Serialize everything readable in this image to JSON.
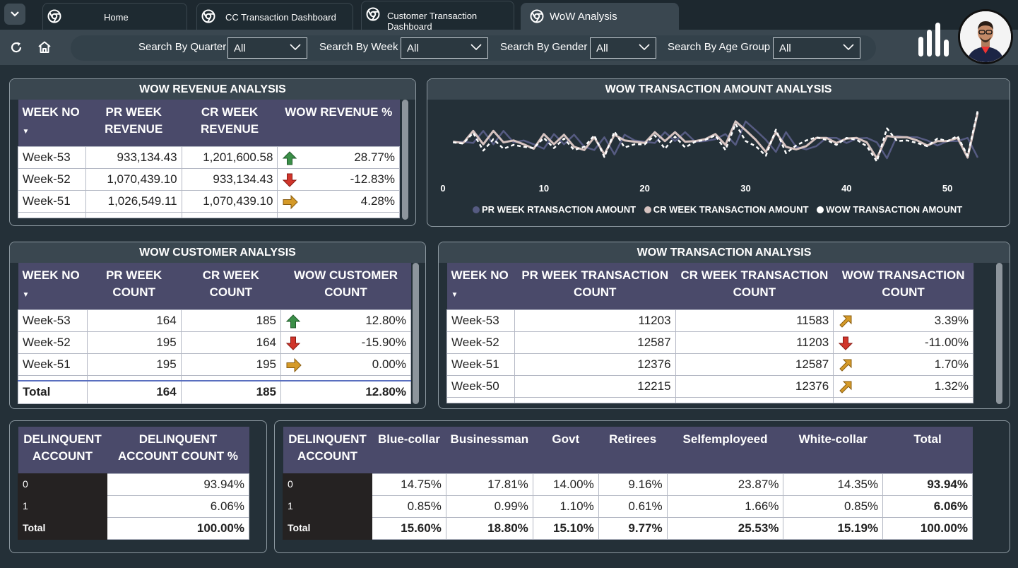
{
  "tabs": [
    {
      "label": "Home"
    },
    {
      "label": "CC Transaction Dashboard"
    },
    {
      "label": "Customer Transaction Dashboard"
    },
    {
      "label": "WoW Analysis"
    }
  ],
  "filters": [
    {
      "label": "Search By Quarter",
      "value": "All"
    },
    {
      "label": "Search By Week",
      "value": "All"
    },
    {
      "label": "Search By Gender",
      "value": "All"
    },
    {
      "label": "Search By Age Group",
      "value": "All"
    }
  ],
  "revenue": {
    "title": "WOW REVENUE ANALYSIS",
    "headers": [
      "WEEK NO",
      "PR WEEK REVENUE",
      "CR WEEK REVENUE",
      "WOW REVENUE %"
    ],
    "rows": [
      {
        "week": "Week-53",
        "pr": "933,134.43",
        "cr": "1,201,600.58",
        "trend": "up",
        "pct": "28.77%"
      },
      {
        "week": "Week-52",
        "pr": "1,070,439.10",
        "cr": "933,134.43",
        "trend": "down",
        "pct": "-12.83%"
      },
      {
        "week": "Week-51",
        "pr": "1,026,549.11",
        "cr": "1,070,439.10",
        "trend": "flat",
        "pct": "4.28%"
      }
    ]
  },
  "amount_chart": {
    "title": "WOW TRANSACTION AMOUNT ANALYSIS",
    "legend": [
      "PR WEEK RTANSACTION AMOUNT",
      "CR WEEK TRANSACTION AMOUNT",
      "WOW TRANSACTION AMOUNT"
    ],
    "colors": {
      "pr": "#565b82",
      "cr": "#d6c3c0",
      "wow": "#ffffff"
    }
  },
  "chart_data": {
    "type": "line",
    "title": "WOW TRANSACTION AMOUNT ANALYSIS",
    "xlabel": "",
    "ylabel": "",
    "xlim": [
      0,
      53
    ],
    "xticks": [
      "0",
      "10",
      "20",
      "30",
      "40",
      "50"
    ],
    "xtick_values": [
      0,
      10,
      20,
      30,
      40,
      50
    ],
    "ylim": [
      0,
      1
    ],
    "series": [
      {
        "name": "PR WEEK RTANSACTION AMOUNT",
        "x": [
          1,
          2,
          3,
          4,
          5,
          6,
          7,
          8,
          9,
          10,
          11,
          12,
          13,
          14,
          15,
          16,
          17,
          18,
          19,
          20,
          21,
          22,
          23,
          24,
          25,
          26,
          27,
          28,
          29,
          30,
          31,
          32,
          33,
          34,
          35,
          36,
          37,
          38,
          39,
          40,
          41,
          42,
          43,
          44,
          45,
          46,
          47,
          48,
          49,
          50,
          51,
          52,
          53
        ],
        "values": [
          0.55,
          0.56,
          0.54,
          0.73,
          0.52,
          0.73,
          0.55,
          0.58,
          0.52,
          0.45,
          0.68,
          0.52,
          0.67,
          0.48,
          0.43,
          0.63,
          0.36,
          0.67,
          0.58,
          0.56,
          0.54,
          0.71,
          0.57,
          0.71,
          0.56,
          0.57,
          0.6,
          0.68,
          0.51,
          0.88,
          0.74,
          0.59,
          0.4,
          0.71,
          0.48,
          0.44,
          0.49,
          0.62,
          0.62,
          0.54,
          0.61,
          0.62,
          0.55,
          0.3,
          0.65,
          0.63,
          0.63,
          0.58,
          0.5,
          0.57,
          0.57,
          0.62,
          0.31
        ]
      },
      {
        "name": "CR WEEK TRANSACTION AMOUNT",
        "x": [
          1,
          2,
          3,
          4,
          5,
          6,
          7,
          8,
          9,
          10,
          11,
          12,
          13,
          14,
          15,
          16,
          17,
          18,
          19,
          20,
          21,
          22,
          23,
          24,
          25,
          26,
          27,
          28,
          29,
          30,
          31,
          32,
          33,
          34,
          35,
          36,
          37,
          38,
          39,
          40,
          41,
          42,
          43,
          44,
          45,
          46,
          47,
          48,
          49,
          50,
          51,
          52,
          53
        ],
        "values": [
          0.56,
          0.54,
          0.73,
          0.52,
          0.73,
          0.55,
          0.58,
          0.52,
          0.45,
          0.68,
          0.52,
          0.67,
          0.48,
          0.43,
          0.63,
          0.36,
          0.67,
          0.58,
          0.56,
          0.54,
          0.71,
          0.57,
          0.71,
          0.56,
          0.57,
          0.6,
          0.68,
          0.51,
          0.88,
          0.74,
          0.59,
          0.4,
          0.71,
          0.48,
          0.44,
          0.49,
          0.62,
          0.62,
          0.54,
          0.61,
          0.62,
          0.55,
          0.3,
          0.65,
          0.63,
          0.63,
          0.58,
          0.5,
          0.57,
          0.57,
          0.62,
          0.31,
          1.02
        ]
      },
      {
        "name": "WOW TRANSACTION AMOUNT",
        "x": [
          1,
          2,
          3,
          4,
          5,
          6,
          7,
          8,
          9,
          10,
          11,
          12,
          13,
          14,
          15,
          16,
          17,
          18,
          19,
          20,
          21,
          22,
          23,
          24,
          25,
          26,
          27,
          28,
          29,
          30,
          31,
          32,
          33,
          34,
          35,
          36,
          37,
          38,
          39,
          40,
          41,
          42,
          43,
          44,
          45,
          46,
          47,
          48,
          49,
          50,
          51,
          52,
          53
        ],
        "values": [
          0.55,
          0.53,
          0.7,
          0.42,
          0.6,
          0.45,
          0.51,
          0.48,
          0.46,
          0.62,
          0.46,
          0.61,
          0.43,
          0.48,
          0.66,
          0.32,
          0.72,
          0.47,
          0.52,
          0.52,
          0.66,
          0.45,
          0.64,
          0.47,
          0.56,
          0.59,
          0.66,
          0.43,
          0.84,
          0.57,
          0.49,
          0.34,
          0.75,
          0.38,
          0.5,
          0.58,
          0.63,
          0.59,
          0.51,
          0.62,
          0.59,
          0.49,
          0.25,
          0.77,
          0.57,
          0.58,
          0.54,
          0.49,
          0.61,
          0.57,
          0.65,
          0.34,
          1.05
        ]
      }
    ]
  },
  "customer": {
    "title": "WOW CUSTOMER ANALYSIS",
    "headers": [
      "WEEK NO",
      "PR WEEK COUNT",
      "CR WEEK COUNT",
      "WOW CUSTOMER COUNT"
    ],
    "rows": [
      {
        "week": "Week-53",
        "pr": "164",
        "cr": "185",
        "trend": "up",
        "pct": "12.80%"
      },
      {
        "week": "Week-52",
        "pr": "195",
        "cr": "164",
        "trend": "down",
        "pct": "-15.90%"
      },
      {
        "week": "Week-51",
        "pr": "195",
        "cr": "195",
        "trend": "flat",
        "pct": "0.00%"
      }
    ],
    "total": {
      "label": "Total",
      "pr": "164",
      "cr": "185",
      "pct": "12.80%"
    }
  },
  "transaction": {
    "title": "WOW TRANSACTION ANALYSIS",
    "headers": [
      "WEEK NO",
      "PR WEEK TRANSACTION COUNT",
      "CR WEEK TRANSACTION COUNT",
      "WOW TRANSACTION COUNT"
    ],
    "rows": [
      {
        "week": "Week-53",
        "pr": "11203",
        "cr": "11583",
        "trend": "upright",
        "pct": "3.39%"
      },
      {
        "week": "Week-52",
        "pr": "12587",
        "cr": "11203",
        "trend": "down",
        "pct": "-11.00%"
      },
      {
        "week": "Week-51",
        "pr": "12376",
        "cr": "12587",
        "trend": "upright",
        "pct": "1.70%"
      },
      {
        "week": "Week-50",
        "pr": "12215",
        "cr": "12376",
        "trend": "upright",
        "pct": "1.32%"
      }
    ]
  },
  "delinquent": {
    "headers": [
      "DELINQUENT ACCOUNT",
      "DELINQUENT ACCOUNT COUNT %"
    ],
    "rows": [
      {
        "k": "0",
        "v": "93.94%"
      },
      {
        "k": "1",
        "v": "6.06%"
      }
    ],
    "total": {
      "k": "Total",
      "v": "100.00%"
    }
  },
  "delinquent_job": {
    "headers": [
      "DELINQUENT ACCOUNT",
      "Blue-collar",
      "Businessman",
      "Govt",
      "Retirees",
      "Selfemployeed",
      "White-collar",
      "Total"
    ],
    "rows": [
      {
        "k": "0",
        "vals": [
          "14.75%",
          "17.81%",
          "14.00%",
          "9.16%",
          "23.87%",
          "14.35%",
          "93.94%"
        ]
      },
      {
        "k": "1",
        "vals": [
          "0.85%",
          "0.99%",
          "1.10%",
          "0.61%",
          "1.66%",
          "0.85%",
          "6.06%"
        ]
      }
    ],
    "total": {
      "k": "Total",
      "vals": [
        "15.60%",
        "18.80%",
        "15.10%",
        "9.77%",
        "25.53%",
        "15.19%",
        "100.00%"
      ]
    }
  }
}
